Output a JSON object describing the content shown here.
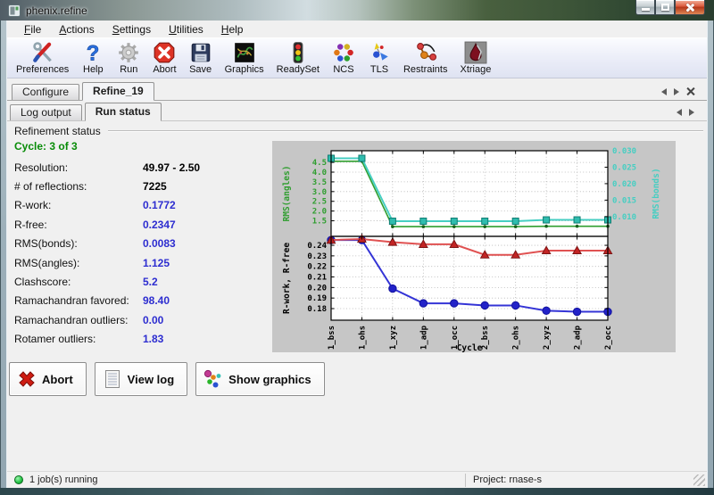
{
  "window": {
    "title": "phenix.refine"
  },
  "menubar": {
    "items": [
      {
        "label": "File"
      },
      {
        "label": "Actions"
      },
      {
        "label": "Settings"
      },
      {
        "label": "Utilities"
      },
      {
        "label": "Help"
      }
    ]
  },
  "toolbar": {
    "items": [
      {
        "label": "Preferences",
        "icon": "preferences"
      },
      {
        "label": "Help",
        "icon": "help"
      },
      {
        "label": "Run",
        "icon": "run"
      },
      {
        "label": "Abort",
        "icon": "abort"
      },
      {
        "label": "Save",
        "icon": "save"
      },
      {
        "label": "Graphics",
        "icon": "graphics"
      },
      {
        "label": "ReadySet",
        "icon": "readyset"
      },
      {
        "label": "NCS",
        "icon": "ncs"
      },
      {
        "label": "TLS",
        "icon": "tls"
      },
      {
        "label": "Restraints",
        "icon": "restraints"
      },
      {
        "label": "Xtriage",
        "icon": "xtriage"
      }
    ]
  },
  "tabs": {
    "items": [
      {
        "label": "Configure"
      },
      {
        "label": "Refine_19"
      }
    ],
    "active_index": 1,
    "controls": [
      {
        "icon": "scroll-left-arrow"
      },
      {
        "icon": "scroll-right-arrow"
      },
      {
        "icon": "close-tab"
      }
    ]
  },
  "subtabs": {
    "items": [
      {
        "label": "Log output"
      },
      {
        "label": "Run status"
      }
    ],
    "active_index": 1,
    "controls": [
      {
        "icon": "scroll-left-arrow"
      },
      {
        "icon": "scroll-right-arrow"
      }
    ]
  },
  "panel": {
    "header": "Refinement status",
    "cycle": "Cycle: 3 of 3",
    "cycle_color": "#088c08",
    "rows": [
      {
        "label": "Resolution:",
        "value": "49.97 - 2.50",
        "value_color": "#000000"
      },
      {
        "label": "# of reflections:",
        "value": "7225",
        "value_color": "#000000"
      },
      {
        "label": "R-work:",
        "value": "0.1772",
        "value_color": "#2d2dd0"
      },
      {
        "label": "R-free:",
        "value": "0.2347",
        "value_color": "#2d2dd0"
      },
      {
        "label": "RMS(bonds):",
        "value": "0.0083",
        "value_color": "#2d2dd0"
      },
      {
        "label": "RMS(angles):",
        "value": "1.125",
        "value_color": "#2d2dd0"
      },
      {
        "label": "Clashscore:",
        "value": "5.2",
        "value_color": "#2d2dd0"
      },
      {
        "label": "Ramachandran favored:",
        "value": "98.40",
        "value_color": "#2d2dd0"
      },
      {
        "label": "Ramachandran outliers:",
        "value": "0.00",
        "value_color": "#2d2dd0"
      },
      {
        "label": "Rotamer outliers:",
        "value": "1.83",
        "value_color": "#2d2dd0"
      }
    ]
  },
  "action_buttons": [
    {
      "label": "Abort",
      "icon": "abort-x"
    },
    {
      "label": "View log",
      "icon": "view-log"
    },
    {
      "label": "Show graphics",
      "icon": "show-graphics"
    }
  ],
  "statusbar": {
    "left": "1 job(s) running",
    "right": "Project: rnase-s"
  },
  "chart_data": [
    {
      "type": "line",
      "categories": [
        "1_bss",
        "1_ohs",
        "1_xyz",
        "1_adp",
        "1_occ",
        "2_bss",
        "2_ohs",
        "2_xyz",
        "2_adp",
        "2_occ"
      ],
      "axes": {
        "left": {
          "label": "RMS(angles)",
          "color": "#2f9e2f",
          "range": [
            0.7,
            5.1
          ],
          "ticks": [
            "1.5",
            "2.0",
            "2.5",
            "3.0",
            "3.5",
            "4.0",
            "4.5"
          ]
        },
        "right": {
          "label": "RMS(bonds)",
          "color": "#46cec2",
          "range": [
            0.004,
            0.03
          ],
          "ticks": [
            "0.010",
            "0.015",
            "0.020",
            "0.025",
            "0.030"
          ]
        }
      },
      "grid": true,
      "series": [
        {
          "name": "RMS(angles)",
          "axis": "left",
          "color": "#2f9e2f",
          "marker": "dot",
          "marker_color": "#14601a",
          "values": [
            4.56,
            4.56,
            1.2,
            1.2,
            1.2,
            1.2,
            1.2,
            1.22,
            1.22,
            1.22
          ]
        },
        {
          "name": "RMS(bonds)",
          "axis": "right",
          "color": "#46cec2",
          "marker": "square",
          "marker_color": "#2fbcae",
          "values": [
            0.0277,
            0.0277,
            0.0086,
            0.0086,
            0.0086,
            0.0086,
            0.0086,
            0.009,
            0.009,
            0.009
          ]
        }
      ]
    },
    {
      "type": "line",
      "categories": [
        "1_bss",
        "1_ohs",
        "1_xyz",
        "1_adp",
        "1_occ",
        "2_bss",
        "2_ohs",
        "2_xyz",
        "2_adp",
        "2_occ"
      ],
      "xlabel": "Cycle",
      "axes": {
        "left": {
          "label": "R-work, R-free",
          "color": "#000000",
          "range": [
            0.169,
            0.2485
          ],
          "ticks": [
            "0.18",
            "0.19",
            "0.20",
            "0.21",
            "0.22",
            "0.23",
            "0.24"
          ]
        }
      },
      "grid": true,
      "series": [
        {
          "name": "R-work",
          "axis": "left",
          "color": "#3434d6",
          "marker": "circle",
          "marker_color": "#2222c8",
          "values": [
            0.245,
            0.245,
            0.199,
            0.185,
            0.185,
            0.183,
            0.183,
            0.178,
            0.177,
            0.177
          ]
        },
        {
          "name": "R-free",
          "axis": "left",
          "color": "#e05252",
          "marker": "triangle",
          "marker_color": "#c32424",
          "values": [
            0.245,
            0.246,
            0.243,
            0.241,
            0.241,
            0.231,
            0.231,
            0.235,
            0.235,
            0.235
          ]
        }
      ]
    }
  ]
}
